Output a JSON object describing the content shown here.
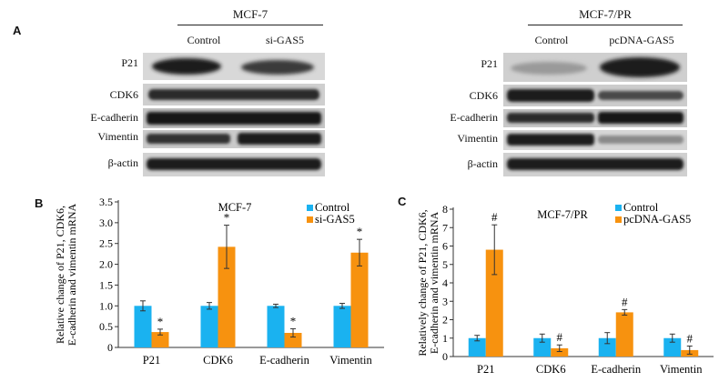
{
  "panel_a": {
    "letter": "A",
    "left_blot": {
      "title": "MCF-7",
      "conditions": [
        "Control",
        "si-GAS5"
      ],
      "proteins": [
        "P21",
        "CDK6",
        "E-cadherin",
        "Vimentin",
        "β-actin"
      ]
    },
    "right_blot": {
      "title": "MCF-7/PR",
      "conditions": [
        "Control",
        "pcDNA-GAS5"
      ],
      "proteins": [
        "P21",
        "CDK6",
        "E-cadherin",
        "Vimentin",
        "β-actin"
      ]
    }
  },
  "colors": {
    "control": "#1ab2f0",
    "treatment": "#f7920f"
  },
  "chart_data": [
    {
      "type": "bar",
      "panel": "B",
      "title": "MCF-7",
      "ylabel": "Relative change of P21, CDK6, E-cadherin and vimentin mRNA",
      "ylabel_lines": [
        "Relative change of P21, CDK6,",
        "E-cadherin and vimentin mRNA"
      ],
      "xlabel": "",
      "categories": [
        "P21",
        "CDK6",
        "E-cadherin",
        "Vimentin"
      ],
      "ylim": [
        0,
        3.5
      ],
      "yticks": [
        0,
        0.5,
        1.0,
        1.5,
        2.0,
        2.5,
        3.0,
        3.5
      ],
      "ytick_labels": [
        "0",
        "0.5",
        "1.0",
        "1.5",
        "2.0",
        "2.5",
        "3.0",
        "3.5"
      ],
      "legend_position": "top-right",
      "series": [
        {
          "name": "Control",
          "values": [
            1.0,
            1.0,
            1.0,
            1.0
          ],
          "errors": [
            0.12,
            0.08,
            0.04,
            0.06
          ],
          "marks": [
            "",
            "",
            "",
            ""
          ]
        },
        {
          "name": "si-GAS5",
          "values": [
            0.37,
            2.42,
            0.35,
            2.28
          ],
          "errors": [
            0.07,
            0.52,
            0.1,
            0.32
          ],
          "marks": [
            "*",
            "*",
            "*",
            "*"
          ]
        }
      ]
    },
    {
      "type": "bar",
      "panel": "C",
      "title": "MCF-7/PR",
      "ylabel": "Relatively change of P21, CDK6, E-cadherin and vimentin mRNA",
      "ylabel_lines": [
        "Relatively change of P21, CDK6,",
        "E-cadherin and vimentin mRNA"
      ],
      "xlabel": "",
      "categories": [
        "P21",
        "CDK6",
        "E-cadherin",
        "Vimentin"
      ],
      "ylim": [
        0,
        8
      ],
      "yticks": [
        0,
        1,
        2,
        3,
        4,
        5,
        6,
        7,
        8
      ],
      "ytick_labels": [
        "0",
        "1",
        "2",
        "3",
        "4",
        "5",
        "6",
        "7",
        "8"
      ],
      "legend_position": "top-right",
      "series": [
        {
          "name": "Control",
          "values": [
            1.0,
            1.0,
            1.0,
            1.0
          ],
          "errors": [
            0.15,
            0.22,
            0.3,
            0.22
          ],
          "marks": [
            "",
            "",
            "",
            ""
          ]
        },
        {
          "name": "pcDNA-GAS5",
          "values": [
            5.8,
            0.45,
            2.4,
            0.35
          ],
          "errors": [
            1.35,
            0.18,
            0.15,
            0.22
          ],
          "marks": [
            "#",
            "#",
            "#",
            "#"
          ]
        }
      ]
    }
  ]
}
